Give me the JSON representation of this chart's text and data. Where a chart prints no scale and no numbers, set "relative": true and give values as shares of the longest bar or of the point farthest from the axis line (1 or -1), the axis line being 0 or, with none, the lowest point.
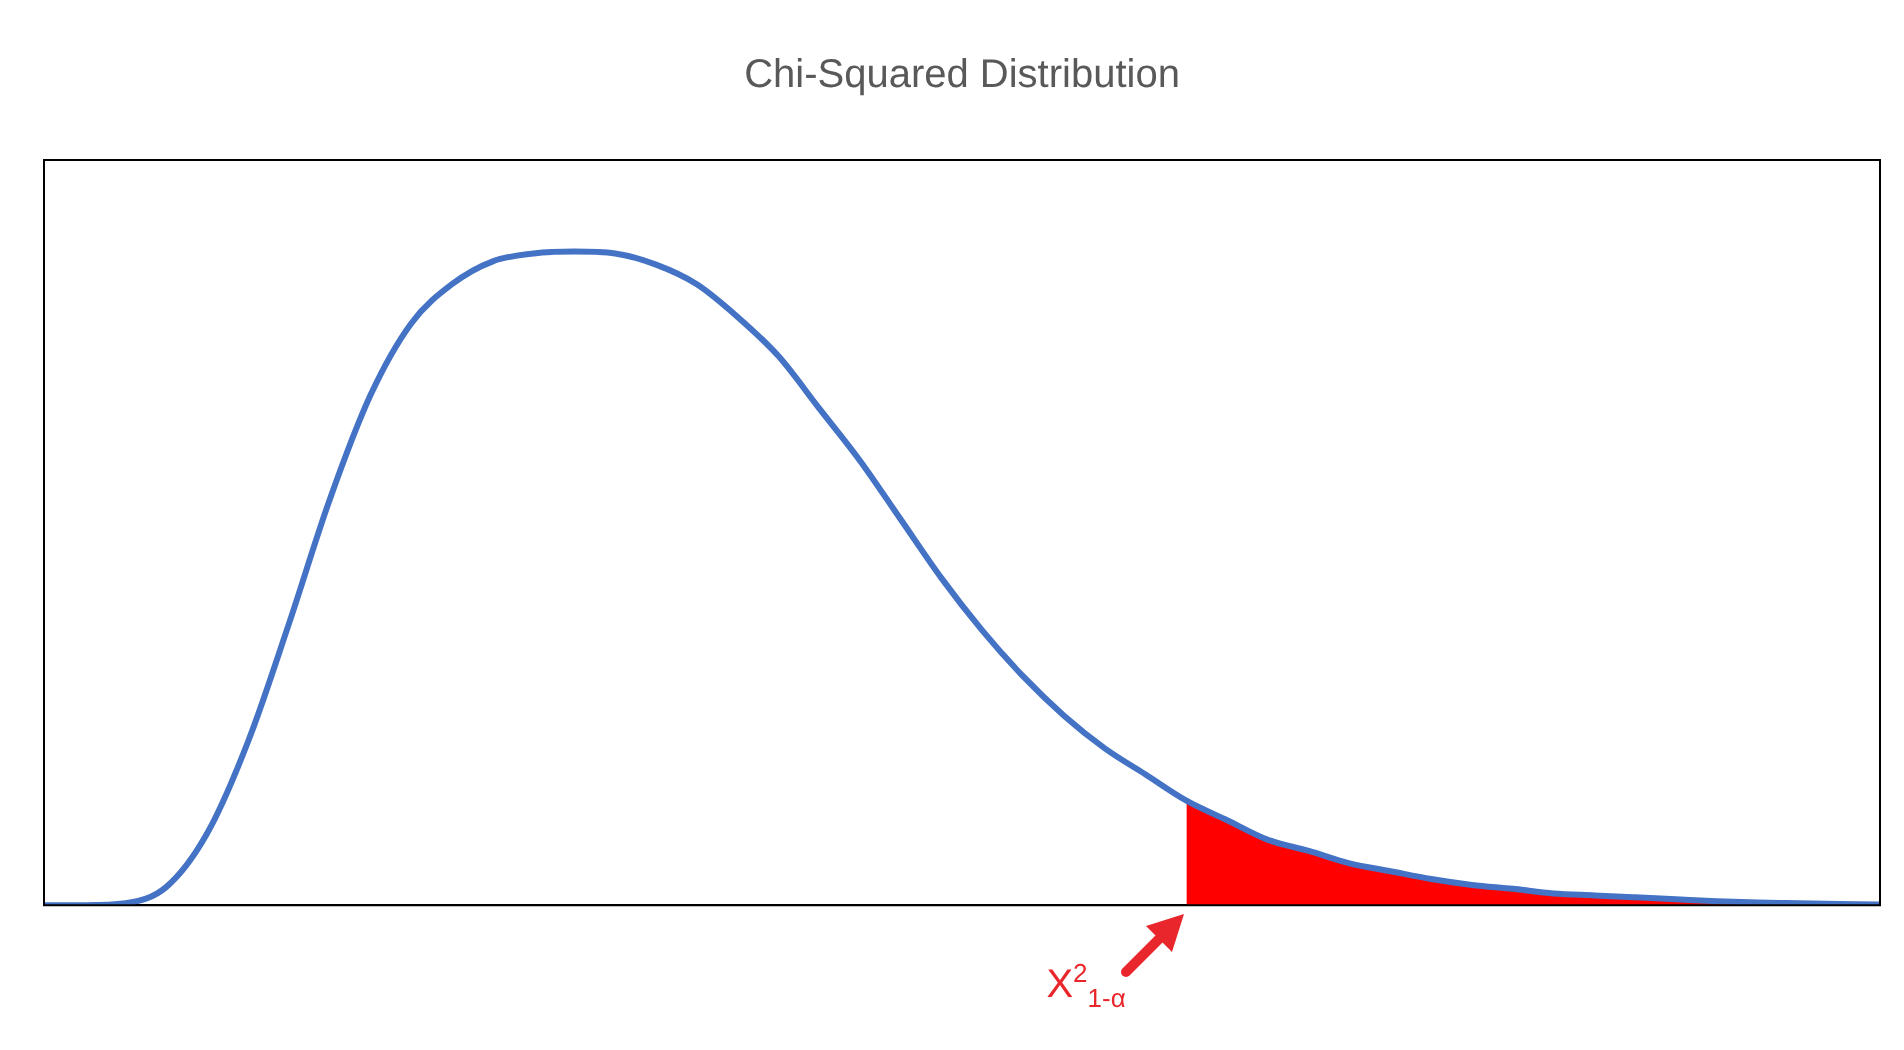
{
  "chart_data": {
    "type": "line",
    "title": "Chi-Squared Distribution",
    "relative": true,
    "grid": false,
    "legend": false,
    "marker": "none",
    "line_style": "solid",
    "categories": [
      null,
      null,
      null,
      null,
      null,
      null,
      null,
      null,
      null,
      null,
      null,
      null,
      null,
      null,
      null,
      null,
      null,
      null,
      null,
      null,
      null,
      null,
      null,
      null,
      null,
      null,
      null,
      null,
      null,
      null,
      null,
      null,
      null,
      null,
      null,
      null,
      null,
      null,
      null,
      null,
      null,
      null,
      null,
      null,
      null,
      null
    ],
    "series": [
      {
        "color": "#4472c4",
        "values": [
          0,
          0,
          0.003,
          0.028,
          0.11,
          0.25,
          0.43,
          0.62,
          0.78,
          0.89,
          0.95,
          0.985,
          0.997,
          1,
          0.997,
          0.98,
          0.95,
          0.9,
          0.84,
          0.76,
          0.68,
          0.59,
          0.5,
          0.42,
          0.35,
          0.29,
          0.24,
          0.2,
          0.16,
          0.13,
          0.1,
          0.083,
          0.064,
          0.052,
          0.04,
          0.031,
          0.025,
          0.018,
          0.015,
          0.012,
          0.009,
          0.006,
          0.004,
          0.003,
          0.002,
          0.001
        ]
      },
      {
        "type": "area",
        "color": "#ff0000",
        "values": [
          null,
          null,
          null,
          null,
          null,
          null,
          null,
          null,
          null,
          null,
          null,
          null,
          null,
          null,
          null,
          null,
          null,
          null,
          null,
          null,
          null,
          null,
          null,
          null,
          null,
          null,
          null,
          null,
          0.16,
          0.13,
          0.1,
          0.083,
          0.064,
          0.052,
          0.04,
          0.031,
          0.025,
          0.018,
          0.015,
          0.012,
          0.009,
          0.006,
          0.004,
          0.003,
          0.002,
          0.001
        ]
      }
    ],
    "annotations": [
      "X$^{2}$$_{1-α}$"
    ]
  }
}
